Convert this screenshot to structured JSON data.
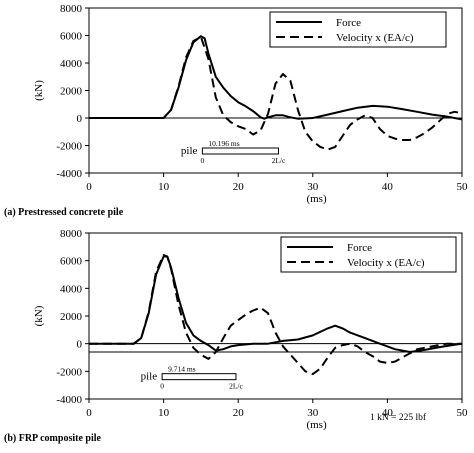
{
  "chart_data": [
    {
      "type": "line",
      "caption": "(a) Prestressed concrete pile",
      "xlabel": "(ms)",
      "ylabel": "(kN)",
      "xlim": [
        0,
        50
      ],
      "ylim": [
        -4000,
        8000
      ],
      "xticks": [
        0,
        10,
        20,
        30,
        40,
        50
      ],
      "yticks": [
        -4000,
        -2000,
        0,
        2000,
        4000,
        6000,
        8000
      ],
      "grid": false,
      "legend_position": "top-right",
      "series": [
        {
          "name": "Force",
          "style": "solid",
          "points": [
            [
              0,
              0
            ],
            [
              10,
              0
            ],
            [
              11,
              600
            ],
            [
              12,
              2200
            ],
            [
              13,
              4200
            ],
            [
              14,
              5500
            ],
            [
              15,
              5950
            ],
            [
              15.5,
              5800
            ],
            [
              16,
              4700
            ],
            [
              17,
              3000
            ],
            [
              18,
              2200
            ],
            [
              19,
              1600
            ],
            [
              20,
              1150
            ],
            [
              21,
              850
            ],
            [
              22,
              500
            ],
            [
              23,
              50
            ],
            [
              23.5,
              -50
            ],
            [
              24,
              50
            ],
            [
              25,
              200
            ],
            [
              26,
              200
            ],
            [
              27,
              50
            ],
            [
              28,
              -50
            ],
            [
              30,
              0
            ],
            [
              32,
              250
            ],
            [
              34,
              500
            ],
            [
              36,
              750
            ],
            [
              38,
              880
            ],
            [
              40,
              820
            ],
            [
              42,
              650
            ],
            [
              44,
              450
            ],
            [
              46,
              250
            ],
            [
              48,
              100
            ],
            [
              50,
              -100
            ]
          ]
        },
        {
          "name": "Velocity x (EA/c)",
          "style": "dashed",
          "points": [
            [
              0,
              0
            ],
            [
              10,
              0
            ],
            [
              11,
              600
            ],
            [
              12,
              2300
            ],
            [
              13,
              4400
            ],
            [
              14,
              5600
            ],
            [
              15,
              5900
            ],
            [
              16,
              4300
            ],
            [
              17,
              1500
            ],
            [
              18,
              200
            ],
            [
              19,
              -300
            ],
            [
              20,
              -600
            ],
            [
              21,
              -800
            ],
            [
              22,
              -1200
            ],
            [
              23,
              -900
            ],
            [
              24,
              300
            ],
            [
              25,
              2500
            ],
            [
              26,
              3200
            ],
            [
              27,
              2700
            ],
            [
              28,
              600
            ],
            [
              29,
              -1000
            ],
            [
              30,
              -1700
            ],
            [
              31,
              -2100
            ],
            [
              32,
              -2300
            ],
            [
              33,
              -2100
            ],
            [
              34,
              -1300
            ],
            [
              35,
              -500
            ],
            [
              36,
              -100
            ],
            [
              37,
              200
            ],
            [
              38,
              0
            ],
            [
              39,
              -800
            ],
            [
              40,
              -1300
            ],
            [
              41,
              -1500
            ],
            [
              42,
              -1600
            ],
            [
              43,
              -1600
            ],
            [
              44,
              -1400
            ],
            [
              45,
              -1100
            ],
            [
              46,
              -700
            ],
            [
              47,
              -200
            ],
            [
              48,
              300
            ],
            [
              49,
              450
            ],
            [
              50,
              350
            ]
          ]
        }
      ],
      "pile_marker": {
        "label": "pile",
        "time": "10.196 ms",
        "start_label": "0",
        "end_label": "2L/c",
        "x_start": 15.2,
        "x_end": 25.4
      }
    },
    {
      "type": "line",
      "caption": "(b) FRP composite pile",
      "note": "1 kN = 225 lbf",
      "xlabel": "(ms)",
      "ylabel": "(kN)",
      "xlim": [
        0,
        50
      ],
      "ylim": [
        -4000,
        8000
      ],
      "xticks": [
        0,
        10,
        20,
        30,
        40,
        50
      ],
      "yticks": [
        -4000,
        -2000,
        0,
        2000,
        4000,
        6000,
        8000
      ],
      "grid": false,
      "legend_position": "top-right",
      "baseline_offset": -600,
      "series": [
        {
          "name": "Force",
          "style": "solid",
          "points": [
            [
              0,
              0
            ],
            [
              6,
              0
            ],
            [
              7,
              400
            ],
            [
              8,
              2200
            ],
            [
              9,
              5000
            ],
            [
              10,
              6300
            ],
            [
              10.5,
              6300
            ],
            [
              11,
              5500
            ],
            [
              12,
              3300
            ],
            [
              13,
              1500
            ],
            [
              14,
              600
            ],
            [
              15,
              200
            ],
            [
              16,
              -100
            ],
            [
              17,
              -500
            ],
            [
              18,
              -400
            ],
            [
              19,
              -200
            ],
            [
              20,
              -100
            ],
            [
              22,
              0
            ],
            [
              24,
              0
            ],
            [
              25,
              100
            ],
            [
              26,
              200
            ],
            [
              28,
              300
            ],
            [
              30,
              600
            ],
            [
              32,
              1100
            ],
            [
              33,
              1300
            ],
            [
              34,
              1100
            ],
            [
              35,
              800
            ],
            [
              37,
              400
            ],
            [
              39,
              0
            ],
            [
              41,
              -400
            ],
            [
              43,
              -600
            ],
            [
              45,
              -450
            ],
            [
              47,
              -250
            ],
            [
              49,
              -80
            ],
            [
              50,
              0
            ]
          ]
        },
        {
          "name": "Velocity x (EA/c)",
          "style": "dashed",
          "points": [
            [
              0,
              0
            ],
            [
              6,
              0
            ],
            [
              7,
              400
            ],
            [
              8,
              2300
            ],
            [
              9,
              5200
            ],
            [
              10,
              6400
            ],
            [
              10.5,
              6300
            ],
            [
              11,
              5400
            ],
            [
              12,
              2800
            ],
            [
              13,
              800
            ],
            [
              14,
              -300
            ],
            [
              15,
              -800
            ],
            [
              16,
              -1100
            ],
            [
              17,
              -600
            ],
            [
              18,
              400
            ],
            [
              19,
              1300
            ],
            [
              20,
              1700
            ],
            [
              21,
              2100
            ],
            [
              22,
              2400
            ],
            [
              23,
              2600
            ],
            [
              24,
              2200
            ],
            [
              25,
              800
            ],
            [
              26,
              -200
            ],
            [
              27,
              -800
            ],
            [
              28,
              -1400
            ],
            [
              29,
              -2000
            ],
            [
              30,
              -2200
            ],
            [
              31,
              -1800
            ],
            [
              32,
              -1000
            ],
            [
              33,
              -300
            ],
            [
              34,
              -100
            ],
            [
              35,
              0
            ],
            [
              36,
              -200
            ],
            [
              37,
              -600
            ],
            [
              38,
              -900
            ],
            [
              39,
              -1300
            ],
            [
              40,
              -1400
            ],
            [
              41,
              -1300
            ],
            [
              42,
              -1000
            ],
            [
              43,
              -700
            ],
            [
              44,
              -400
            ],
            [
              45,
              -300
            ],
            [
              46,
              -200
            ],
            [
              47,
              -100
            ],
            [
              48,
              0
            ],
            [
              50,
              0
            ]
          ]
        }
      ],
      "pile_marker": {
        "label": "pile",
        "time": "9.714 ms",
        "start_label": "0",
        "end_label": "2L/c",
        "x_start": 9.8,
        "x_end": 19.7
      }
    }
  ]
}
